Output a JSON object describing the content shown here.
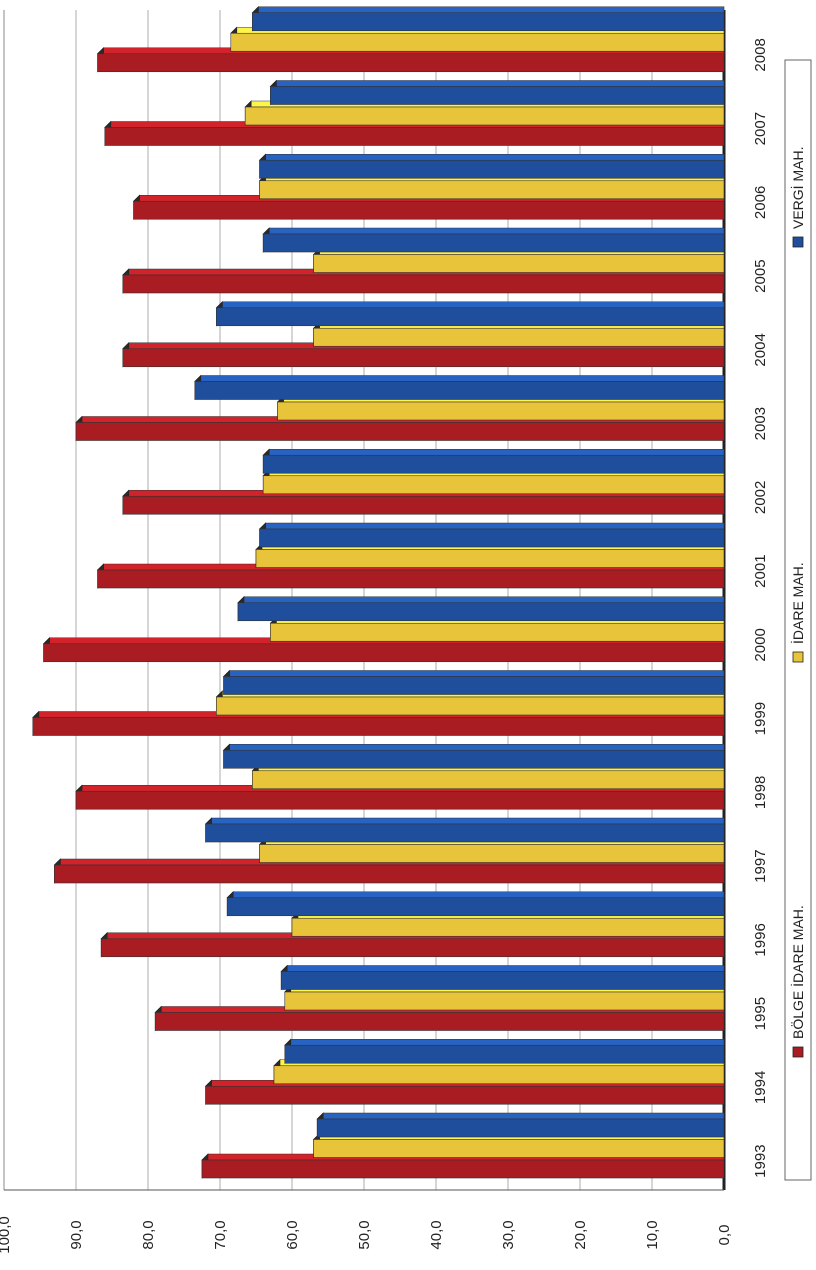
{
  "chart_data": {
    "type": "bar",
    "orientation": "rotated-90",
    "categories": [
      "1993",
      "1994",
      "1995",
      "1996",
      "1997",
      "1998",
      "1999",
      "2000",
      "2001",
      "2002",
      "2003",
      "2004",
      "2005",
      "2006",
      "2007",
      "2008"
    ],
    "series": [
      {
        "name": "BÖLGE İDARE MAH.",
        "color": "#a81c22",
        "values": [
          72.5,
          72.0,
          79.0,
          86.5,
          93.0,
          90.0,
          96.0,
          94.5,
          87.0,
          83.5,
          90.0,
          83.5,
          83.5,
          82.0,
          86.0,
          87.0
        ]
      },
      {
        "name": "İDARE MAH.",
        "color": "#e8c43a",
        "values": [
          57.0,
          62.5,
          61.0,
          60.0,
          64.5,
          65.5,
          70.5,
          63.0,
          65.0,
          64.0,
          62.0,
          57.0,
          57.0,
          64.5,
          66.5,
          68.5
        ]
      },
      {
        "name": "VERGİ MAH.",
        "color": "#1f4f9c",
        "values": [
          56.5,
          61.0,
          61.5,
          69.0,
          72.0,
          69.5,
          69.5,
          67.5,
          64.5,
          64.0,
          73.5,
          70.5,
          64.0,
          64.5,
          63.0,
          65.5
        ]
      }
    ],
    "y_ticks": [
      "0,0",
      "10,0",
      "20,0",
      "30,0",
      "40,0",
      "50,0",
      "60,0",
      "70,0",
      "80,0",
      "90,0",
      "100,0"
    ],
    "ylim": [
      0,
      100
    ],
    "grid": true,
    "legend_placement": "right"
  }
}
